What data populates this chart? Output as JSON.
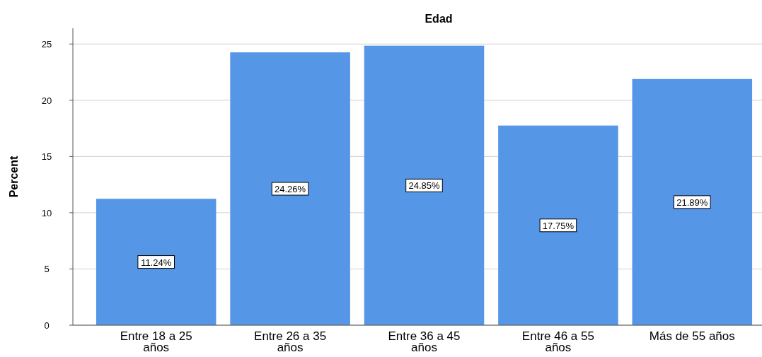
{
  "chart_data": {
    "type": "bar",
    "title": "Edad",
    "ylabel": "Percent",
    "categories": [
      "Entre 18 a 25 años",
      "Entre 26 a 35 años",
      "Entre 36 a 45 años",
      "Entre 46 a 55 años",
      "Más de 55 años"
    ],
    "values": [
      11.24,
      24.26,
      24.85,
      17.75,
      21.89
    ],
    "value_labels": [
      "11.24%",
      "24.26%",
      "24.85%",
      "17.75%",
      "21.89%"
    ],
    "color": "#5596e6",
    "ylim": [
      0,
      26.4
    ],
    "yticks": [
      0,
      5,
      10,
      15,
      20,
      25
    ],
    "grid": "y"
  }
}
